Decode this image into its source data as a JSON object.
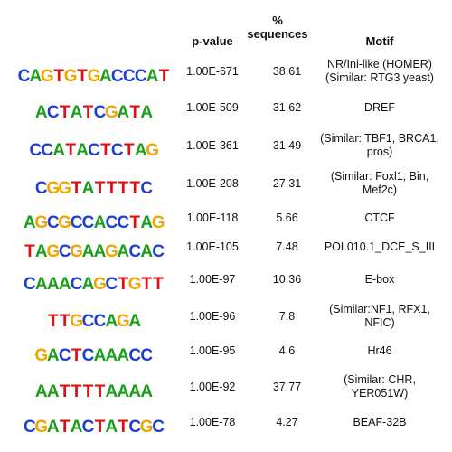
{
  "header": {
    "pvalue": "p-value",
    "pct_sign": "%",
    "sequences": "sequences",
    "motif": "Motif"
  },
  "colors": {
    "A": "#1a9f1a",
    "C": "#1f3fd0",
    "G": "#f2a400",
    "T": "#dd1111"
  },
  "rows": [
    {
      "seq": "CAGTGTGACCCAT",
      "pvalue": "1.00E-671",
      "pct": "38.61",
      "motif": [
        "NR/Ini-like (HOMER)",
        "(Similar:  RTG3 yeast)"
      ]
    },
    {
      "seq": "ACTATCGATA",
      "pvalue": "1.00E-509",
      "pct": "31.62",
      "motif": [
        "DREF"
      ]
    },
    {
      "seq": "CCATACTCTAG",
      "pvalue": "1.00E-361",
      "pct": "31.49",
      "motif": [
        "(Similar: TBF1, BRCA1,",
        "pros)"
      ]
    },
    {
      "seq": "CGGTATTTTC",
      "pvalue": "1.00E-208",
      "pct": "27.31",
      "motif": [
        "(Similar: Foxl1, Bin,",
        "Mef2c)"
      ]
    },
    {
      "seq": "AGCGCCACCTAG",
      "pvalue": "1.00E-118",
      "pct": "5.66",
      "motif": [
        "CTCF"
      ]
    },
    {
      "seq": "TAGCGAAGACAC",
      "pvalue": "1.00E-105",
      "pct": "7.48",
      "motif": [
        "POL010.1_DCE_S_III"
      ]
    },
    {
      "seq": "CAAACAGCTGTT",
      "pvalue": "1.00E-97",
      "pct": "10.36",
      "motif": [
        "E-box"
      ]
    },
    {
      "seq": "TTGCCAGA",
      "pvalue": "1.00E-96",
      "pct": "7.8",
      "motif": [
        "(Similar:NF1, RFX1,",
        "NFIC)"
      ]
    },
    {
      "seq": "GACTCAAACC",
      "pvalue": "1.00E-95",
      "pct": "4.6",
      "motif": [
        "Hr46"
      ]
    },
    {
      "seq": "AATTTTAAAA",
      "pvalue": "1.00E-92",
      "pct": "37.77",
      "motif": [
        "(Similar:  CHR,",
        "YER051W)"
      ]
    },
    {
      "seq": "CGATACTATCGC",
      "pvalue": "1.00E-78",
      "pct": "4.27",
      "motif": [
        "BEAF-32B"
      ]
    }
  ]
}
